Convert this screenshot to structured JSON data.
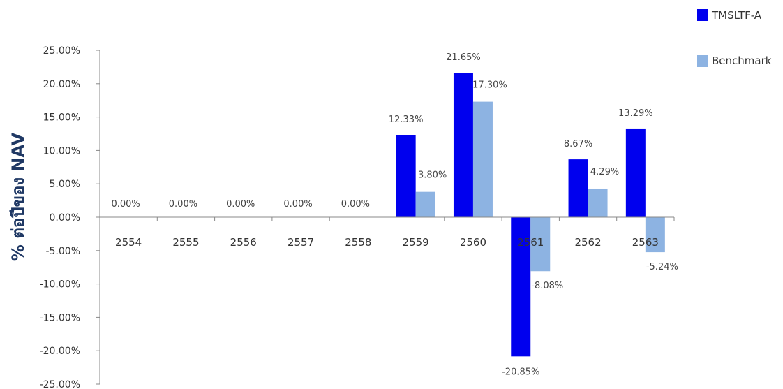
{
  "chart_data": {
    "type": "bar",
    "title": "",
    "xlabel": "",
    "ylabel": "% ต่อปีของ NAV",
    "ylim": [
      -25,
      25
    ],
    "y_ticks": [
      25,
      20,
      15,
      10,
      5,
      0,
      -5,
      -10,
      -15,
      -20,
      -25
    ],
    "y_tick_labels": [
      "25.00%",
      "20.00%",
      "15.00%",
      "10.00%",
      "5.00%",
      "0.00%",
      "-5.00%",
      "-10.00%",
      "-15.00%",
      "-20.00%",
      "-25.00%"
    ],
    "categories": [
      "2554",
      "2555",
      "2556",
      "2557",
      "2558",
      "2559",
      "2560",
      "2561",
      "2562",
      "2563"
    ],
    "series": [
      {
        "name": "TMSLTF-A",
        "color": "#0000ee",
        "values": [
          0,
          0,
          0,
          0,
          0,
          12.33,
          21.65,
          -20.85,
          8.67,
          13.29
        ],
        "labels": [
          "",
          "",
          "",
          "",
          "",
          "12.33%",
          "21.65%",
          "-20.85%",
          "8.67%",
          "13.29%"
        ]
      },
      {
        "name": "Benchmark",
        "color": "#8db3e2",
        "values": [
          0,
          0,
          0,
          0,
          0,
          3.8,
          17.3,
          -8.08,
          4.29,
          -5.24
        ],
        "labels": [
          "",
          "",
          "",
          "",
          "",
          "3.80%",
          "17.30%",
          "-8.08%",
          "4.29%",
          "-5.24%"
        ]
      }
    ],
    "zero_year_labels": [
      "0.00%",
      "0.00%",
      "0.00%",
      "0.00%",
      "0.00%"
    ],
    "grid": false,
    "legend_position": "top-right"
  }
}
